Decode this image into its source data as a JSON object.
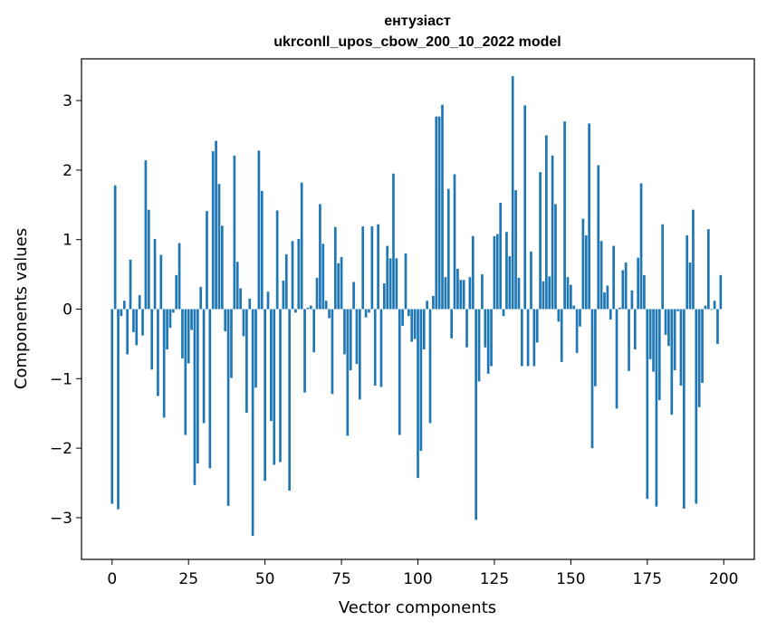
{
  "chart_data": {
    "type": "bar",
    "title": "ентузіаст",
    "subtitle": "ukrconll_upos_cbow_200_10_2022 model",
    "xlabel": "Vector components",
    "ylabel": "Components values",
    "xlim": [
      -10,
      210
    ],
    "ylim": [
      -3.6,
      3.6
    ],
    "xticks": [
      0,
      25,
      50,
      75,
      100,
      125,
      150,
      175,
      200
    ],
    "yticks": [
      -3,
      -2,
      -1,
      0,
      1,
      2,
      3
    ],
    "xtick_labels": [
      "0",
      "25",
      "50",
      "75",
      "100",
      "125",
      "150",
      "175",
      "200"
    ],
    "ytick_labels": [
      "−3",
      "−2",
      "−1",
      "0",
      "1",
      "2",
      "3"
    ],
    "bar_color": "#1f77b4",
    "grid": false,
    "x": [
      0,
      1,
      2,
      3,
      4,
      5,
      6,
      7,
      8,
      9,
      10,
      11,
      12,
      13,
      14,
      15,
      16,
      17,
      18,
      19,
      20,
      21,
      22,
      23,
      24,
      25,
      26,
      27,
      28,
      29,
      30,
      31,
      32,
      33,
      34,
      35,
      36,
      37,
      38,
      39,
      40,
      41,
      42,
      43,
      44,
      45,
      46,
      47,
      48,
      49,
      50,
      51,
      52,
      53,
      54,
      55,
      56,
      57,
      58,
      59,
      60,
      61,
      62,
      63,
      64,
      65,
      66,
      67,
      68,
      69,
      70,
      71,
      72,
      73,
      74,
      75,
      76,
      77,
      78,
      79,
      80,
      81,
      82,
      83,
      84,
      85,
      86,
      87,
      88,
      89,
      90,
      91,
      92,
      93,
      94,
      95,
      96,
      97,
      98,
      99,
      100,
      101,
      102,
      103,
      104,
      105,
      106,
      107,
      108,
      109,
      110,
      111,
      112,
      113,
      114,
      115,
      116,
      117,
      118,
      119,
      120,
      121,
      122,
      123,
      124,
      125,
      126,
      127,
      128,
      129,
      130,
      131,
      132,
      133,
      134,
      135,
      136,
      137,
      138,
      139,
      140,
      141,
      142,
      143,
      144,
      145,
      146,
      147,
      148,
      149,
      150,
      151,
      152,
      153,
      154,
      155,
      156,
      157,
      158,
      159,
      160,
      161,
      162,
      163,
      164,
      165,
      166,
      167,
      168,
      169,
      170,
      171,
      172,
      173,
      174,
      175,
      176,
      177,
      178,
      179,
      180,
      181,
      182,
      183,
      184,
      185,
      186,
      187,
      188,
      189,
      190,
      191,
      192,
      193,
      194,
      195,
      196,
      197,
      198,
      199
    ],
    "values": [
      -2.8,
      1.78,
      -2.88,
      -0.1,
      0.12,
      -0.65,
      0.71,
      -0.33,
      -0.52,
      0.2,
      -0.38,
      2.14,
      1.43,
      -0.87,
      1.01,
      -1.25,
      0.78,
      -1.56,
      -0.58,
      -0.27,
      -0.05,
      0.49,
      0.95,
      -0.71,
      -1.81,
      -0.78,
      -0.3,
      -2.53,
      -2.22,
      0.32,
      -1.64,
      1.41,
      -2.29,
      2.27,
      2.42,
      1.8,
      1.2,
      -0.32,
      -2.83,
      -0.99,
      2.21,
      0.68,
      0.3,
      -0.39,
      -1.49,
      0.15,
      -3.26,
      -1.13,
      2.28,
      1.7,
      -2.47,
      0.25,
      -1.61,
      -2.24,
      1.42,
      -2.2,
      0.41,
      0.79,
      -2.61,
      0.98,
      -0.05,
      1.01,
      1.82,
      -1.2,
      0.02,
      0.05,
      -0.62,
      0.45,
      1.51,
      0.94,
      0.12,
      -0.13,
      -1.22,
      1.18,
      0.66,
      0.75,
      -0.65,
      -1.82,
      -0.88,
      0.39,
      -0.79,
      -1.3,
      1.19,
      -0.12,
      -0.05,
      1.19,
      -1.1,
      1.22,
      -1.12,
      0.37,
      0.91,
      0.73,
      1.95,
      0.73,
      -1.81,
      -0.24,
      0.8,
      -0.1,
      -0.47,
      -0.43,
      -2.43,
      -2.04,
      -0.58,
      0.12,
      -1.64,
      0.19,
      2.77,
      2.77,
      2.94,
      0.46,
      1.73,
      -0.42,
      1.94,
      0.58,
      0.42,
      0.42,
      -0.55,
      0.46,
      1.05,
      -3.03,
      -1.04,
      0.5,
      -0.55,
      -0.93,
      -0.82,
      1.05,
      1.08,
      1.53,
      -0.1,
      1.11,
      0.76,
      3.35,
      1.71,
      0.45,
      -0.82,
      2.93,
      -0.82,
      0.83,
      -0.82,
      -0.48,
      1.97,
      0.4,
      2.5,
      0.47,
      2.21,
      1.51,
      -0.18,
      -0.76,
      2.7,
      0.46,
      0.35,
      0.05,
      -0.63,
      -0.25,
      1.3,
      1.06,
      2.67,
      -2.0,
      -1.11,
      2.07,
      0.98,
      0.24,
      0.34,
      -0.15,
      0.91,
      -1.43,
      0.02,
      0.56,
      0.67,
      -0.89,
      0.27,
      -0.58,
      0.74,
      1.81,
      0.49,
      -2.73,
      -0.72,
      -0.9,
      -2.84,
      -1.31,
      1.22,
      -0.37,
      -0.53,
      -1.52,
      -0.88,
      -0.03,
      -1.1,
      -2.87,
      1.06,
      0.67,
      1.43,
      -2.8,
      -1.41,
      -1.06,
      0.05,
      1.15,
      -0.01,
      0.12,
      -0.5,
      0.49
    ]
  }
}
